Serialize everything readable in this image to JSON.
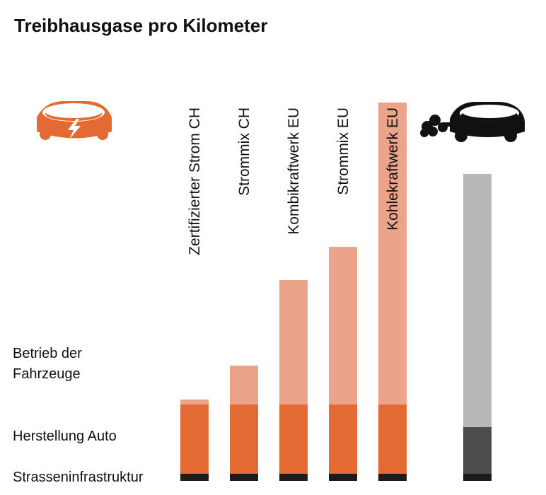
{
  "chart_data": {
    "type": "bar",
    "stacked": true,
    "title": "Treibhausgase pro Kilometer",
    "categories": [
      "Zertifizierter Strom CH",
      "Strommix CH",
      "Kombikraftwerk EU",
      "Strommix EU",
      "Kohlekraftwerk EU",
      ""
    ],
    "segment_labels": [
      "Strasseninfrastruktur",
      "Herstellung Auto",
      "Betrieb der Fahrzeuge"
    ],
    "segment_label_lines": [
      [
        "Strasseninfrastruktur"
      ],
      [
        "Herstellung Auto"
      ],
      [
        "Betrieb der",
        "Fahrzeuge"
      ]
    ],
    "series": [
      {
        "values": [
          10,
          10,
          10,
          10,
          10,
          10
        ]
      },
      {
        "values": [
          98,
          98,
          98,
          98,
          98,
          66
        ]
      },
      {
        "values": [
          7,
          55,
          176,
          223,
          427,
          358
        ]
      }
    ],
    "colors": {
      "electric": [
        "#1c1c1c",
        "#e46a33",
        "#eba38a"
      ],
      "combustion": [
        "#1c1c1c",
        "#4d4d4d",
        "#b8b8b8"
      ]
    },
    "ylim": [
      0,
      535
    ],
    "icons": [
      "electric-car-icon",
      "combustion-car-icon"
    ],
    "icon_colors": {
      "electric": "#e46a33",
      "combustion": "#111111"
    }
  }
}
